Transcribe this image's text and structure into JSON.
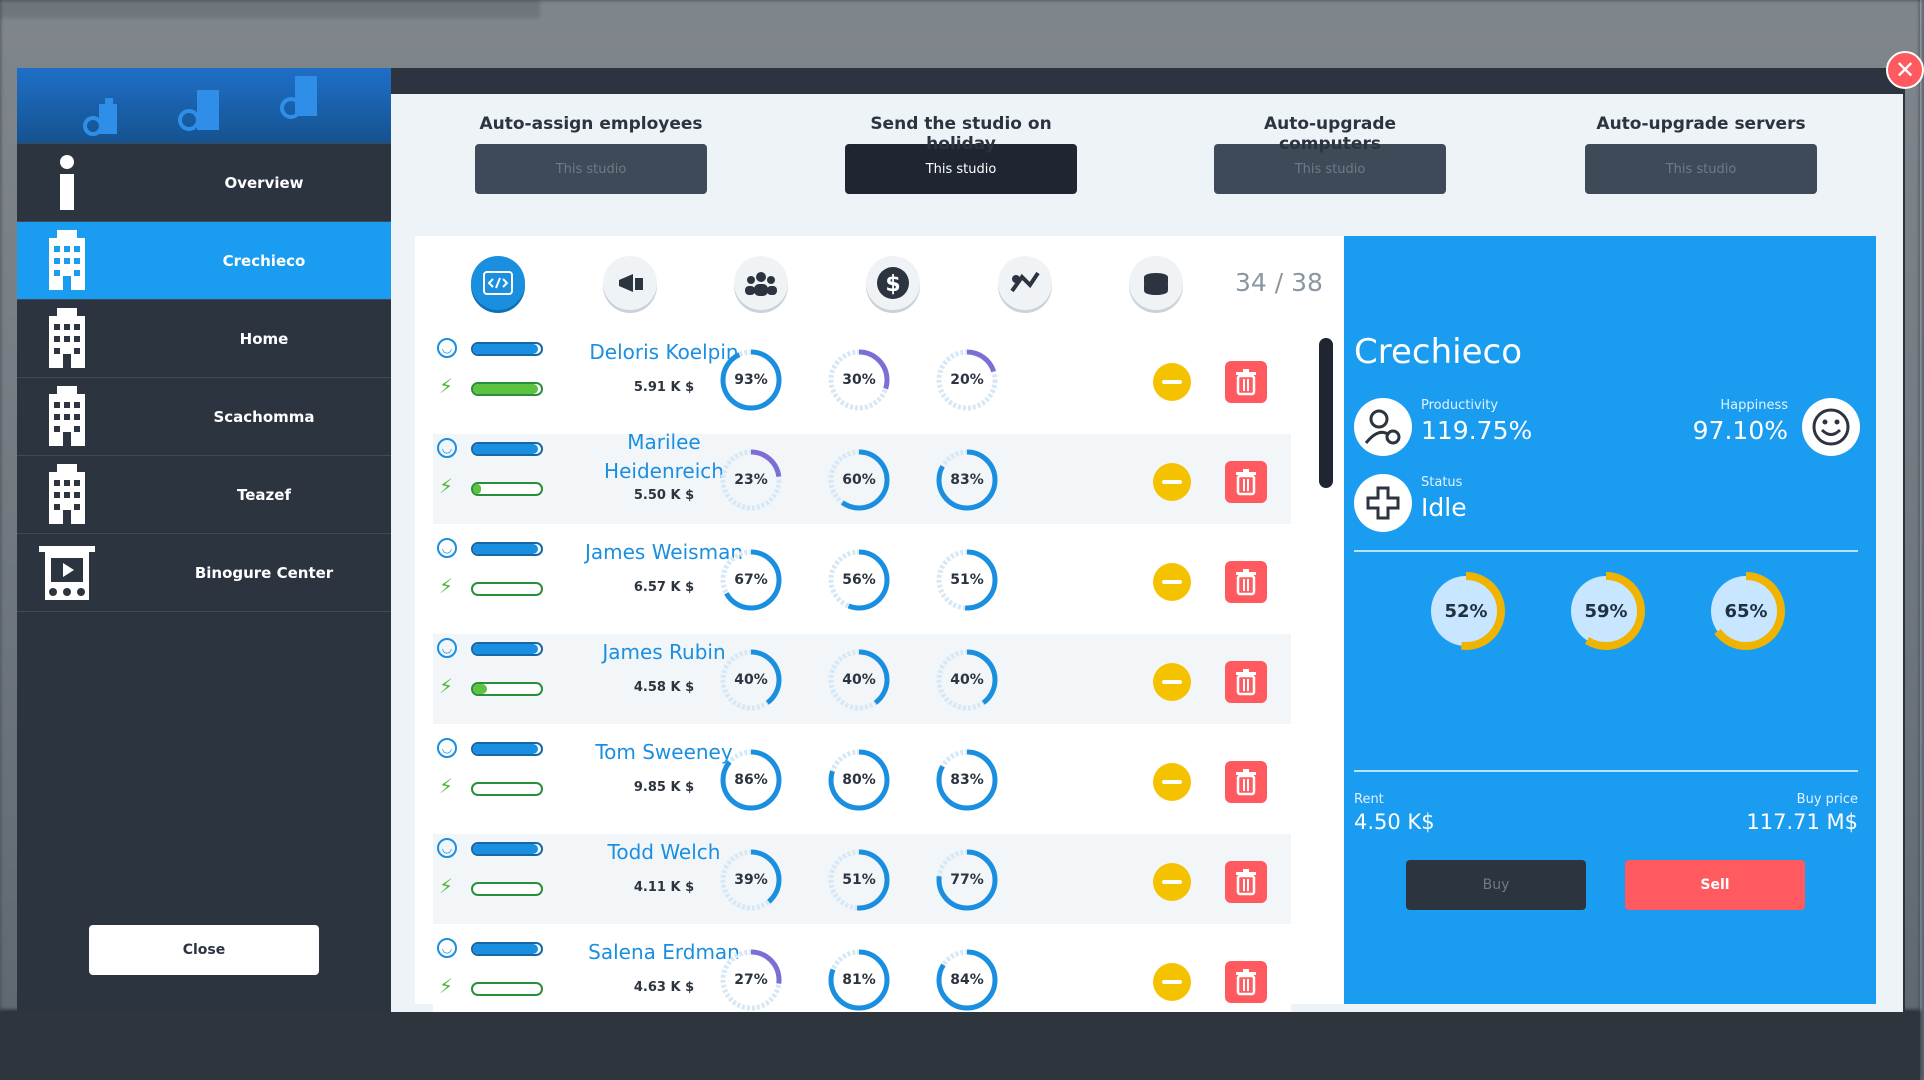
{
  "window": {
    "close_symbol": "✕"
  },
  "sidebar": {
    "header_icons": [
      "buildings-gear-icon",
      "buildings-gear-icon",
      "buildings-gear-icon"
    ],
    "items": [
      {
        "label": "Overview",
        "icon": "info-icon",
        "active": false
      },
      {
        "label": "Crechieco",
        "icon": "building-icon",
        "active": true
      },
      {
        "label": "Home",
        "icon": "building-icon",
        "active": false
      },
      {
        "label": "Scachomma",
        "icon": "building-icon",
        "active": false
      },
      {
        "label": "Teazef",
        "icon": "building-icon",
        "active": false
      },
      {
        "label": "Binogure Center",
        "icon": "cinema-icon",
        "active": false
      }
    ],
    "close_label": "Close"
  },
  "options": [
    {
      "title": "Auto-assign employees",
      "button": "This studio",
      "enabled": false
    },
    {
      "title": "Send the studio on holiday",
      "button": "This studio",
      "enabled": true
    },
    {
      "title": "Auto-upgrade computers",
      "button": "This studio",
      "enabled": false
    },
    {
      "title": "Auto-upgrade servers",
      "button": "This studio",
      "enabled": false
    }
  ],
  "list": {
    "tabs": [
      "code-icon",
      "marketing-icon",
      "team-icon",
      "dollar-icon",
      "support-icon",
      "servers-icon"
    ],
    "count": "34 / 38",
    "employees": [
      {
        "name": "Deloris Koelpin",
        "salary": "5.91 K $",
        "happiness": 0.95,
        "energy": 0.95,
        "skills": [
          "93%",
          "30%",
          "20%"
        ],
        "values": [
          93,
          30,
          20
        ]
      },
      {
        "name": "Marilee Heidenreich",
        "salary": "5.50 K $",
        "happiness": 0.95,
        "energy": 0.12,
        "skills": [
          "23%",
          "60%",
          "83%"
        ],
        "values": [
          23,
          60,
          83
        ]
      },
      {
        "name": "James Weisman",
        "salary": "6.57 K $",
        "happiness": 0.95,
        "energy": 0.0,
        "skills": [
          "67%",
          "56%",
          "51%"
        ],
        "values": [
          67,
          56,
          51
        ]
      },
      {
        "name": "James Rubin",
        "salary": "4.58 K $",
        "happiness": 0.95,
        "energy": 0.2,
        "skills": [
          "40%",
          "40%",
          "40%"
        ],
        "values": [
          40,
          40,
          40
        ]
      },
      {
        "name": "Tom Sweeney",
        "salary": "9.85 K $",
        "happiness": 0.95,
        "energy": 0.0,
        "skills": [
          "86%",
          "80%",
          "83%"
        ],
        "values": [
          86,
          80,
          83
        ]
      },
      {
        "name": "Todd Welch",
        "salary": "4.11 K $",
        "happiness": 0.95,
        "energy": 0.0,
        "skills": [
          "39%",
          "51%",
          "77%"
        ],
        "values": [
          39,
          51,
          77
        ]
      },
      {
        "name": "Salena Erdman",
        "salary": "4.63 K $",
        "happiness": 0.95,
        "energy": 0.0,
        "skills": [
          "27%",
          "81%",
          "84%"
        ],
        "values": [
          27,
          81,
          84
        ]
      }
    ]
  },
  "info": {
    "title": "Crechieco",
    "productivity_label": "Productivity",
    "productivity": "119.75%",
    "happiness_label": "Happiness",
    "happiness": "97.10%",
    "status_label": "Status",
    "status": "Idle",
    "rings": [
      "52%",
      "59%",
      "65%"
    ],
    "ring_values": [
      52,
      59,
      65
    ],
    "rent_label": "Rent",
    "rent": "4.50 K$",
    "buy_price_label": "Buy price",
    "buy_price": "117.71 M$",
    "buy_label": "Buy",
    "sell_label": "Sell"
  },
  "colors": {
    "accent": "#1a9cf0",
    "ring": "#1a8fe0",
    "ring_low": "#7b6fd6",
    "danger": "#ff5a5f",
    "warn": "#f5c200",
    "gold": "#f0b400"
  }
}
